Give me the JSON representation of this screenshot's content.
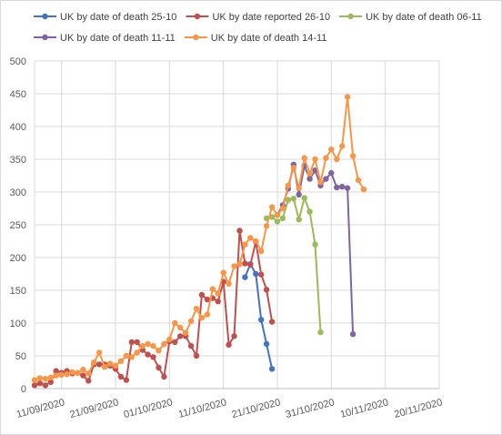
{
  "chart_data": {
    "type": "line",
    "title": "",
    "xlabel": "",
    "ylabel": "",
    "ylim": [
      0,
      500
    ],
    "xlim": [
      "2020-09-06",
      "2020-11-20"
    ],
    "y_ticks": [
      0,
      50,
      100,
      150,
      200,
      250,
      300,
      350,
      400,
      450,
      500
    ],
    "x_ticks": [
      "11/09/2020",
      "21/09/2020",
      "01/10/2020",
      "11/10/2020",
      "21/10/2020",
      "31/10/2020",
      "10/11/2020",
      "20/11/2020"
    ],
    "grid": "vertical and horizontal",
    "legend_position": "top",
    "series": [
      {
        "name": "UK by date of death 25-10",
        "color": "#4472C4",
        "points": [
          [
            "2020-10-15",
            170
          ],
          [
            "2020-10-16",
            190
          ],
          [
            "2020-10-17",
            175
          ],
          [
            "2020-10-18",
            105
          ],
          [
            "2020-10-19",
            68
          ],
          [
            "2020-10-20",
            30
          ]
        ]
      },
      {
        "name": "UK by date reported 26-10",
        "color": "#C0504D",
        "points": [
          [
            "2020-09-06",
            5
          ],
          [
            "2020-09-07",
            8
          ],
          [
            "2020-09-08",
            5
          ],
          [
            "2020-09-09",
            10
          ],
          [
            "2020-09-10",
            27
          ],
          [
            "2020-09-11",
            24
          ],
          [
            "2020-09-12",
            27
          ],
          [
            "2020-09-13",
            23
          ],
          [
            "2020-09-14",
            24
          ],
          [
            "2020-09-15",
            20
          ],
          [
            "2020-09-16",
            12
          ],
          [
            "2020-09-17",
            37
          ],
          [
            "2020-09-18",
            37
          ],
          [
            "2020-09-19",
            37
          ],
          [
            "2020-09-20",
            35
          ],
          [
            "2020-09-21",
            30
          ],
          [
            "2020-09-22",
            18
          ],
          [
            "2020-09-23",
            13
          ],
          [
            "2020-09-24",
            71
          ],
          [
            "2020-09-25",
            71
          ],
          [
            "2020-09-26",
            59
          ],
          [
            "2020-09-27",
            52
          ],
          [
            "2020-09-28",
            48
          ],
          [
            "2020-09-29",
            32
          ],
          [
            "2020-09-30",
            18
          ],
          [
            "2020-10-01",
            72
          ],
          [
            "2020-10-02",
            71
          ],
          [
            "2020-10-03",
            80
          ],
          [
            "2020-10-04",
            80
          ],
          [
            "2020-10-05",
            65
          ],
          [
            "2020-10-06",
            50
          ],
          [
            "2020-10-07",
            143
          ],
          [
            "2020-10-08",
            136
          ],
          [
            "2020-10-09",
            138
          ],
          [
            "2020-10-10",
            133
          ],
          [
            "2020-10-11",
            163
          ],
          [
            "2020-10-12",
            67
          ],
          [
            "2020-10-13",
            80
          ],
          [
            "2020-10-14",
            241
          ],
          [
            "2020-10-15",
            191
          ],
          [
            "2020-10-16",
            189
          ],
          [
            "2020-10-17",
            224
          ],
          [
            "2020-10-18",
            174
          ],
          [
            "2020-10-19",
            151
          ],
          [
            "2020-10-20",
            102
          ]
        ]
      },
      {
        "name": "UK by date of death 06-11",
        "color": "#9BBB59",
        "points": [
          [
            "2020-10-19",
            260
          ],
          [
            "2020-10-20",
            262
          ],
          [
            "2020-10-21",
            255
          ],
          [
            "2020-10-22",
            260
          ],
          [
            "2020-10-23",
            288
          ],
          [
            "2020-10-24",
            290
          ],
          [
            "2020-10-25",
            258
          ],
          [
            "2020-10-26",
            291
          ],
          [
            "2020-10-27",
            270
          ],
          [
            "2020-10-28",
            220
          ],
          [
            "2020-10-29",
            86
          ]
        ]
      },
      {
        "name": "UK by date of death 11-11",
        "color": "#8064A2",
        "points": [
          [
            "2020-10-21",
            265
          ],
          [
            "2020-10-22",
            280
          ],
          [
            "2020-10-23",
            305
          ],
          [
            "2020-10-24",
            342
          ],
          [
            "2020-10-25",
            296
          ],
          [
            "2020-10-26",
            340
          ],
          [
            "2020-10-27",
            320
          ],
          [
            "2020-10-28",
            333
          ],
          [
            "2020-10-29",
            310
          ],
          [
            "2020-10-30",
            320
          ],
          [
            "2020-10-31",
            329
          ],
          [
            "2020-11-01",
            307
          ],
          [
            "2020-11-02",
            308
          ],
          [
            "2020-11-03",
            306
          ],
          [
            "2020-11-04",
            83
          ]
        ]
      },
      {
        "name": "UK by date of death 14-11",
        "color": "#F79646",
        "points": [
          [
            "2020-09-06",
            13
          ],
          [
            "2020-09-07",
            16
          ],
          [
            "2020-09-08",
            15
          ],
          [
            "2020-09-09",
            17
          ],
          [
            "2020-09-10",
            20
          ],
          [
            "2020-09-11",
            21
          ],
          [
            "2020-09-12",
            22
          ],
          [
            "2020-09-13",
            25
          ],
          [
            "2020-09-14",
            24
          ],
          [
            "2020-09-15",
            29
          ],
          [
            "2020-09-16",
            23
          ],
          [
            "2020-09-17",
            40
          ],
          [
            "2020-09-18",
            55
          ],
          [
            "2020-09-19",
            33
          ],
          [
            "2020-09-20",
            38
          ],
          [
            "2020-09-21",
            35
          ],
          [
            "2020-09-22",
            42
          ],
          [
            "2020-09-23",
            50
          ],
          [
            "2020-09-24",
            48
          ],
          [
            "2020-09-25",
            55
          ],
          [
            "2020-09-26",
            65
          ],
          [
            "2020-09-27",
            68
          ],
          [
            "2020-09-28",
            65
          ],
          [
            "2020-09-29",
            58
          ],
          [
            "2020-09-30",
            68
          ],
          [
            "2020-10-01",
            75
          ],
          [
            "2020-10-02",
            100
          ],
          [
            "2020-10-03",
            93
          ],
          [
            "2020-10-04",
            85
          ],
          [
            "2020-10-05",
            103
          ],
          [
            "2020-10-06",
            122
          ],
          [
            "2020-10-07",
            108
          ],
          [
            "2020-10-08",
            113
          ],
          [
            "2020-10-09",
            152
          ],
          [
            "2020-10-10",
            145
          ],
          [
            "2020-10-11",
            177
          ],
          [
            "2020-10-12",
            160
          ],
          [
            "2020-10-13",
            187
          ],
          [
            "2020-10-14",
            190
          ],
          [
            "2020-10-15",
            220
          ],
          [
            "2020-10-16",
            230
          ],
          [
            "2020-10-17",
            225
          ],
          [
            "2020-10-18",
            210
          ],
          [
            "2020-10-19",
            248
          ],
          [
            "2020-10-20",
            277
          ],
          [
            "2020-10-21",
            265
          ],
          [
            "2020-10-22",
            275
          ],
          [
            "2020-10-23",
            310
          ],
          [
            "2020-10-24",
            337
          ],
          [
            "2020-10-25",
            306
          ],
          [
            "2020-10-26",
            352
          ],
          [
            "2020-10-27",
            328
          ],
          [
            "2020-10-28",
            350
          ],
          [
            "2020-10-29",
            315
          ],
          [
            "2020-10-30",
            352
          ],
          [
            "2020-10-31",
            365
          ],
          [
            "2020-11-01",
            350
          ],
          [
            "2020-11-02",
            370
          ],
          [
            "2020-11-03",
            445
          ],
          [
            "2020-11-04",
            355
          ],
          [
            "2020-11-05",
            318
          ],
          [
            "2020-11-06",
            304
          ]
        ]
      }
    ]
  }
}
